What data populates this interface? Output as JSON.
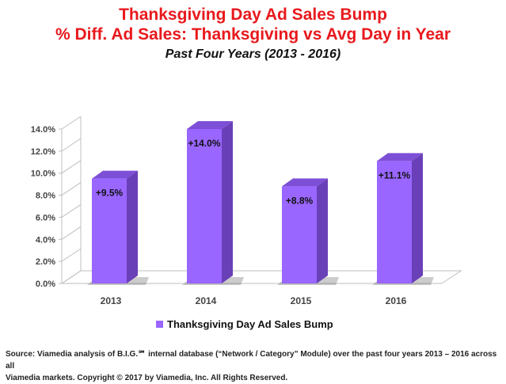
{
  "header": {
    "title_line1": "Thanksgiving Day Ad Sales Bump",
    "title_line2": "% Diff. Ad Sales: Thanksgiving vs Avg Day in Year",
    "subtitle": "Past Four Years (2013 - 2016)"
  },
  "chart_data": {
    "type": "bar",
    "style": "3d",
    "categories": [
      "2013",
      "2014",
      "2015",
      "2016"
    ],
    "series": [
      {
        "name": "Thanksgiving Day Ad Sales Bump",
        "values": [
          9.5,
          14.0,
          8.8,
          11.1
        ]
      }
    ],
    "data_labels": [
      "+9.5%",
      "+14.0%",
      "+8.8%",
      "+11.1%"
    ],
    "y_ticks": [
      "0.0%",
      "2.0%",
      "4.0%",
      "6.0%",
      "8.0%",
      "10.0%",
      "12.0%",
      "14.0%"
    ],
    "ylim": [
      0,
      14
    ],
    "grid": false,
    "legend_position": "bottom",
    "colors": {
      "bar_front": "#9966ff",
      "bar_side": "#6a40b8",
      "bar_top": "#7d4fd6",
      "wall_line": "#bfbfbf"
    }
  },
  "footer": {
    "source_line1": "Source: Viamedia analysis of B.I.G.℠ internal database (“Network / Category” Module) over the past four years 2013 – 2016 across all",
    "source_line2": "Viamedia markets. Copyright © 2017 by Viamedia, Inc. All Rights Reserved."
  }
}
